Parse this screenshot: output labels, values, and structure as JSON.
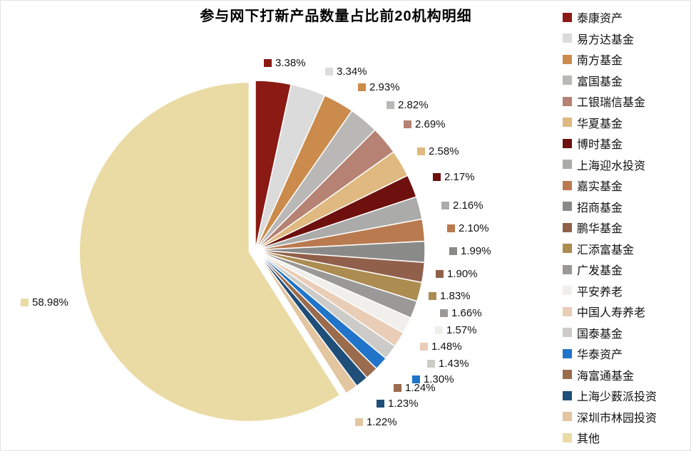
{
  "title": "参与网下打新产品数量占比前20机构明细",
  "chart_data": {
    "type": "pie",
    "title": "参与网下打新产品数量占比前20机构明细",
    "unit": "%",
    "direction": "clockwise",
    "start_angle_deg": 0,
    "legend_position": "right",
    "exploded_slice": "其他",
    "slices": [
      {
        "label": "泰康资产",
        "value": 3.38,
        "color": "#8A1A13"
      },
      {
        "label": "易方达基金",
        "value": 3.34,
        "color": "#DBDBDB"
      },
      {
        "label": "南方基金",
        "value": 2.93,
        "color": "#CB8B4C"
      },
      {
        "label": "富国基金",
        "value": 2.82,
        "color": "#BAB8B6"
      },
      {
        "label": "工银瑞信基金",
        "value": 2.69,
        "color": "#B58273"
      },
      {
        "label": "华夏基金",
        "value": 2.58,
        "color": "#DFB97F"
      },
      {
        "label": "博时基金",
        "value": 2.17,
        "color": "#6E100E"
      },
      {
        "label": "上海迎水投资",
        "value": 2.16,
        "color": "#ABABA9"
      },
      {
        "label": "嘉实基金",
        "value": 2.1,
        "color": "#BA7A50"
      },
      {
        "label": "招商基金",
        "value": 1.99,
        "color": "#8A8A88"
      },
      {
        "label": "鹏华基金",
        "value": 1.9,
        "color": "#91604B"
      },
      {
        "label": "汇添富基金",
        "value": 1.83,
        "color": "#AC8C50"
      },
      {
        "label": "广发基金",
        "value": 1.66,
        "color": "#9A9998"
      },
      {
        "label": "平安养老",
        "value": 1.57,
        "color": "#F1EFEB"
      },
      {
        "label": "中国人寿养老",
        "value": 1.48,
        "color": "#EACDB7"
      },
      {
        "label": "国泰基金",
        "value": 1.43,
        "color": "#CDCBC7"
      },
      {
        "label": "华泰资产",
        "value": 1.3,
        "color": "#2074C9"
      },
      {
        "label": "海富通基金",
        "value": 1.24,
        "color": "#9A6B4C"
      },
      {
        "label": "上海少薮派投资",
        "value": 1.23,
        "color": "#1F4E79"
      },
      {
        "label": "深圳市林园投资",
        "value": 1.22,
        "color": "#E3C5A0"
      },
      {
        "label": "其他",
        "value": 58.98,
        "color": "#EADAA4"
      }
    ]
  }
}
